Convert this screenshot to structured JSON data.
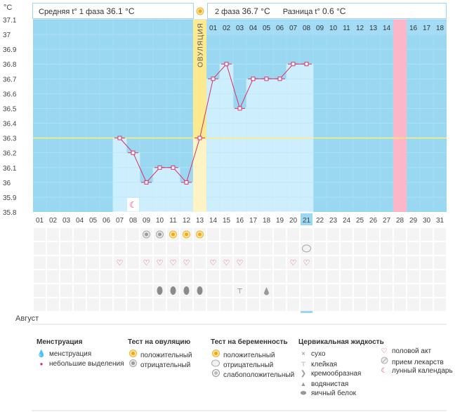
{
  "header": {
    "phase1_label": "Средняя t° 1 фаза",
    "phase1_value": "36.1 °C",
    "phase2_label": "2 фаза",
    "phase2_value": "36.7 °C",
    "diff_label": "Разница t°",
    "diff_value": "0.6 °C",
    "unit": "°C"
  },
  "month_label": "Август",
  "ovulation_label": "ОВУЛЯЦИЯ",
  "chart_data": {
    "type": "line",
    "days": [
      "01",
      "02",
      "03",
      "04",
      "05",
      "06",
      "07",
      "08",
      "09",
      "10",
      "11",
      "12",
      "13",
      "14",
      "15",
      "16",
      "17",
      "18",
      "19",
      "20",
      "21",
      "22",
      "23",
      "24",
      "25",
      "26",
      "27",
      "28",
      "29",
      "30",
      "31"
    ],
    "cycle_days": [
      "01",
      "02",
      "03",
      "04",
      "05",
      "06",
      "07",
      "08",
      "09",
      "10",
      "11",
      "12",
      "13",
      "14",
      "15",
      "16",
      "17",
      "18"
    ],
    "cycle_start_index": 13,
    "highlighted_cycle_day": "15",
    "temperatures": [
      null,
      null,
      null,
      null,
      null,
      null,
      36.3,
      36.2,
      36.0,
      36.1,
      36.1,
      36.0,
      36.3,
      36.7,
      36.8,
      36.5,
      36.7,
      36.7,
      36.7,
      36.8,
      36.8,
      null,
      null,
      null,
      null,
      null,
      null,
      null,
      null,
      null,
      null
    ],
    "ylim": [
      35.8,
      37.1
    ],
    "yticks": [
      "37.1",
      "37",
      "36.9",
      "36.8",
      "36.7",
      "36.6",
      "36.5",
      "36.4",
      "36.3",
      "36.2",
      "36.1",
      "36",
      "35.9",
      "35.8"
    ],
    "coverline": 36.3,
    "ovulation_day": "13",
    "today": "21",
    "red_days": [
      "03",
      "04",
      "10",
      "11",
      "17",
      "18",
      "24",
      "25",
      "31"
    ],
    "colors": {
      "line": "#d6306a",
      "plot_bg": "#9ad8f2",
      "fill": "#cdeefc",
      "coverline": "#ffef7a",
      "ovulation": "#fdea90",
      "highlight": "#fbb6c7",
      "today": "#9ad8f2"
    }
  },
  "markers": {
    "moon_days": [
      "08"
    ],
    "ovulation_test_negative": [
      "09",
      "10"
    ],
    "ovulation_test_positive": [
      "11",
      "12",
      "13"
    ],
    "pregnancy_test_negative": [
      "21"
    ],
    "intercourse": [
      "07",
      "09",
      "10",
      "11",
      "12",
      "14",
      "15",
      "16",
      "20",
      "21"
    ],
    "mucus_egg_white": [
      "10",
      "11",
      "12",
      "13"
    ],
    "mucus_sticky": [
      "16"
    ],
    "mucus_watery": [
      "18"
    ]
  },
  "legend": {
    "menstruation": {
      "title": "Менструация",
      "items": [
        "менструация",
        "небольшие выделения"
      ]
    },
    "ovulation_test": {
      "title": "Тест на овуляцию",
      "items": [
        "положительный",
        "отрицательный"
      ]
    },
    "pregnancy_test": {
      "title": "Тест на беременность",
      "items": [
        "положительный",
        "отрицательный",
        "слабоположительный"
      ]
    },
    "cervical_fluid": {
      "title": "Цервикальная жидкость",
      "items": [
        "сухо",
        "клейкая",
        "кремообразная",
        "водянистая",
        "яичный белок"
      ]
    },
    "other": {
      "items": [
        "половой акт",
        "прием лекарств",
        "лунный календарь"
      ]
    }
  }
}
